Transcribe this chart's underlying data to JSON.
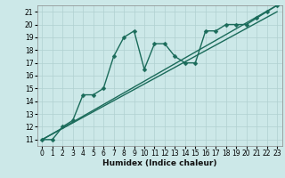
{
  "title": "",
  "xlabel": "Humidex (Indice chaleur)",
  "ylabel": "",
  "bg_color": "#cce8e8",
  "grid_color": "#b0d0d0",
  "line_color": "#1a6b5a",
  "xlim": [
    -0.5,
    23.5
  ],
  "ylim": [
    10.5,
    21.5
  ],
  "xticks": [
    0,
    1,
    2,
    3,
    4,
    5,
    6,
    7,
    8,
    9,
    10,
    11,
    12,
    13,
    14,
    15,
    16,
    17,
    18,
    19,
    20,
    21,
    22,
    23
  ],
  "yticks": [
    11,
    12,
    13,
    14,
    15,
    16,
    17,
    18,
    19,
    20,
    21
  ],
  "wavy_x": [
    0,
    1,
    2,
    3,
    4,
    5,
    6,
    7,
    8,
    9,
    10,
    11,
    12,
    13,
    14,
    15,
    16,
    17,
    18,
    19,
    20,
    21,
    22,
    23
  ],
  "wavy_y": [
    11,
    11,
    12,
    12.5,
    14.5,
    14.5,
    15,
    17.5,
    19,
    19.5,
    16.5,
    18.5,
    18.5,
    17.5,
    17,
    17,
    19.5,
    19.5,
    20,
    20,
    20,
    20.5,
    21,
    21.5
  ],
  "line1_x": [
    0,
    23
  ],
  "line1_y": [
    11,
    21.5
  ],
  "line2_x": [
    0,
    23
  ],
  "line2_y": [
    11,
    21
  ],
  "marker_size": 2.5,
  "linewidth": 1.0,
  "font_size_ticks": 5.5,
  "font_size_label": 6.5
}
